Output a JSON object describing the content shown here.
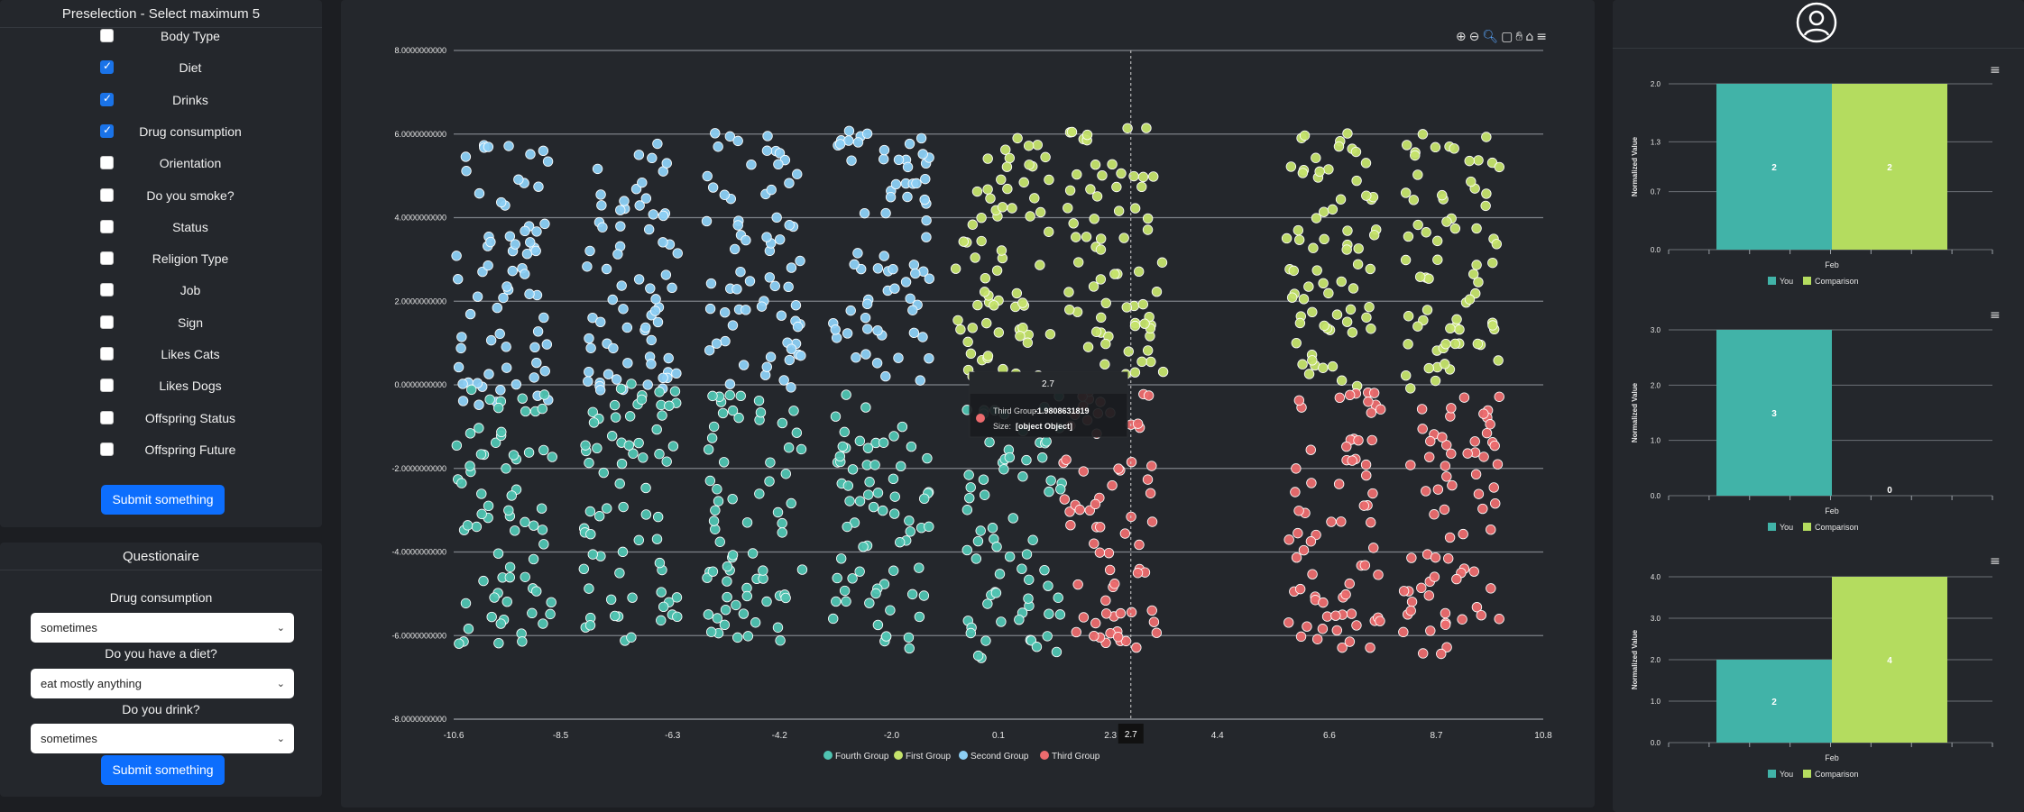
{
  "preselection": {
    "title": "Preselection - Select maximum 5",
    "items": [
      {
        "label": "Body Type",
        "checked": false
      },
      {
        "label": "Diet",
        "checked": true
      },
      {
        "label": "Drinks",
        "checked": true
      },
      {
        "label": "Drug consumption",
        "checked": true
      },
      {
        "label": "Orientation",
        "checked": false
      },
      {
        "label": "Do you smoke?",
        "checked": false
      },
      {
        "label": "Status",
        "checked": false
      },
      {
        "label": "Religion Type",
        "checked": false
      },
      {
        "label": "Job",
        "checked": false
      },
      {
        "label": "Sign",
        "checked": false
      },
      {
        "label": "Likes Cats",
        "checked": false
      },
      {
        "label": "Likes Dogs",
        "checked": false
      },
      {
        "label": "Offspring Status",
        "checked": false
      },
      {
        "label": "Offspring Future",
        "checked": false
      }
    ],
    "submit_label": "Submit something"
  },
  "questionnaire": {
    "title": "Questionaire",
    "questions": [
      {
        "label": "Drug consumption",
        "value": "sometimes"
      },
      {
        "label": "Do you have a diet?",
        "value": "eat mostly anything"
      },
      {
        "label": "Do you drink?",
        "value": "sometimes"
      }
    ],
    "submit_label": "Submit something"
  },
  "toolbar": {
    "icons": [
      "zoom-in-icon",
      "zoom-out-icon",
      "magnifier-icon",
      "selection-icon",
      "pan-hand-icon",
      "home-icon",
      "menu-icon"
    ]
  },
  "profile": {
    "icon": "user-circle-icon"
  },
  "chart_data": [
    {
      "type": "scatter",
      "y_tick_labels": [
        "8.0000000000",
        "6.0000000000",
        "4.0000000000",
        "2.0000000000",
        "0.0000000000",
        "-2.0000000000",
        "-4.0000000000",
        "-6.0000000000",
        "-8.0000000000"
      ],
      "x_tick_labels": [
        "-10.6",
        "-8.5",
        "-6.3",
        "-4.2",
        "-2.0",
        "0.1",
        "2.3",
        "4.4",
        "6.6",
        "8.7",
        "10.8"
      ],
      "xlim": [
        -10.6,
        10.8
      ],
      "ylim": [
        -8,
        8
      ],
      "legend": [
        {
          "name": "Fourth Group",
          "color": "#4fc3b1"
        },
        {
          "name": "First Group",
          "color": "#c5e36b"
        },
        {
          "name": "Second Group",
          "color": "#8ccff4"
        },
        {
          "name": "Third Group",
          "color": "#ec6b6e"
        }
      ],
      "legend_position": "bottom",
      "crosshair": {
        "x": 2.7,
        "x_label": "2.7"
      },
      "tooltip": {
        "header": "2.7",
        "series": "Third Group:",
        "value": "-1.9808631819",
        "size_label": "Size:",
        "size_value": "[object Object]"
      },
      "series": [
        {
          "name": "Second Group",
          "color": "#8ccff4",
          "clusters": [
            [
              -9.6,
              2.6
            ],
            [
              -7.1,
              3.0
            ],
            [
              -4.7,
              3.0
            ],
            [
              -2.2,
              3.2
            ]
          ]
        },
        {
          "name": "Fourth Group",
          "color": "#4fc3b1",
          "clusters": [
            [
              -9.6,
              -3.2
            ],
            [
              -7.1,
              -3.1
            ],
            [
              -4.7,
              -3.2
            ],
            [
              -2.2,
              -3.3
            ],
            [
              0.4,
              -3.4
            ]
          ]
        },
        {
          "name": "First Group",
          "color": "#c5e36b",
          "clusters": [
            [
              0.2,
              3.1
            ],
            [
              2.4,
              3.0
            ],
            [
              6.7,
              3.1
            ],
            [
              9.0,
              3.0
            ]
          ]
        },
        {
          "name": "Third Group",
          "color": "#ec6b6e",
          "clusters": [
            [
              2.3,
              -3.2
            ],
            [
              6.7,
              -3.2
            ],
            [
              9.0,
              -3.3
            ]
          ]
        }
      ]
    },
    {
      "type": "bar",
      "ylabel": "Normalized Value",
      "categories": [
        "Feb"
      ],
      "yticks": [
        "0.0",
        "0.7",
        "1.3",
        "2.0"
      ],
      "ylim": [
        0,
        2
      ],
      "series": [
        {
          "name": "You",
          "color": "#41b3a8",
          "values": [
            2
          ]
        },
        {
          "name": "Comparison",
          "color": "#b4dc5f",
          "values": [
            2
          ]
        }
      ],
      "data_labels": [
        "2",
        "2"
      ]
    },
    {
      "type": "bar",
      "ylabel": "Normalized Value",
      "categories": [
        "Feb"
      ],
      "yticks": [
        "0.0",
        "1.0",
        "2.0",
        "3.0"
      ],
      "ylim": [
        0,
        3
      ],
      "series": [
        {
          "name": "You",
          "color": "#41b3a8",
          "values": [
            3
          ]
        },
        {
          "name": "Comparison",
          "color": "#b4dc5f",
          "values": [
            0
          ]
        }
      ],
      "data_labels": [
        "3",
        "0"
      ]
    },
    {
      "type": "bar",
      "ylabel": "Normalized Value",
      "categories": [
        "Feb"
      ],
      "yticks": [
        "0.0",
        "1.0",
        "2.0",
        "3.0",
        "4.0"
      ],
      "ylim": [
        0,
        4
      ],
      "series": [
        {
          "name": "You",
          "color": "#41b3a8",
          "values": [
            2
          ]
        },
        {
          "name": "Comparison",
          "color": "#b4dc5f",
          "values": [
            4
          ]
        }
      ],
      "data_labels": [
        "2",
        "4"
      ]
    }
  ]
}
